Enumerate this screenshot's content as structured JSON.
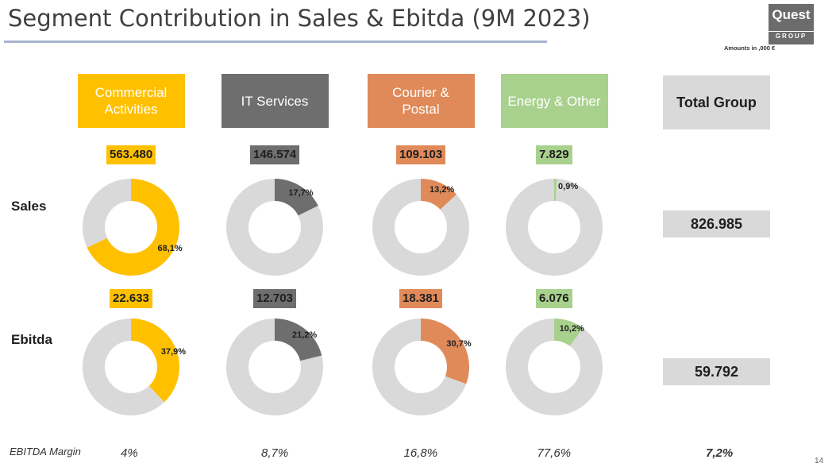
{
  "title": "Segment Contribution in Sales & Ebitda (9M 2023)",
  "logo": {
    "name": "Quest",
    "sub": "GROUP"
  },
  "amounts_note": "Amounts in ,000 €",
  "row_labels": {
    "sales": "Sales",
    "ebitda": "Ebitda",
    "margin": "EBITDA Margin"
  },
  "segments": [
    {
      "label_lines": [
        "Commercial",
        "Activities"
      ],
      "color": "#ffc000",
      "text_color": "#ffffff"
    },
    {
      "label_lines": [
        "IT Services"
      ],
      "color": "#6e6e6e",
      "text_color": "#ffffff"
    },
    {
      "label_lines": [
        "Courier &",
        "Postal"
      ],
      "color": "#e08a5a",
      "text_color": "#ffffff"
    },
    {
      "label_lines": [
        "Energy & Other"
      ],
      "color": "#a9d18e",
      "text_color": "#ffffff"
    }
  ],
  "total": {
    "label": "Total Group",
    "sales": "826.985",
    "ebitda": "59.792",
    "margin": "7,2%"
  },
  "colors": {
    "rest": "#d9d9d9"
  },
  "chart_data": [
    {
      "type": "pie",
      "row": "Sales",
      "categories": [
        "Commercial Activities",
        "IT Services",
        "Courier & Postal",
        "Energy & Other"
      ],
      "values": [
        563480,
        146574,
        109103,
        7829
      ],
      "value_labels": [
        "563.480",
        "146.574",
        "109.103",
        "7.829"
      ],
      "shares": [
        68.1,
        17.7,
        13.2,
        0.9
      ],
      "share_labels": [
        "68,1%",
        "17,7%",
        "13,2%",
        "0,9%"
      ],
      "total": "826.985"
    },
    {
      "type": "pie",
      "row": "Ebitda",
      "categories": [
        "Commercial Activities",
        "IT Services",
        "Courier & Postal",
        "Energy & Other"
      ],
      "values": [
        22633,
        12703,
        18381,
        6076
      ],
      "value_labels": [
        "22.633",
        "12.703",
        "18.381",
        "6.076"
      ],
      "shares": [
        37.9,
        21.2,
        30.7,
        10.2
      ],
      "share_labels": [
        "37,9%",
        "21,2%",
        "30,7%",
        "10,2%"
      ],
      "total": "59.792"
    }
  ],
  "margins": [
    "4%",
    "8,7%",
    "16,8%",
    "77,6%"
  ],
  "page_number": "14"
}
